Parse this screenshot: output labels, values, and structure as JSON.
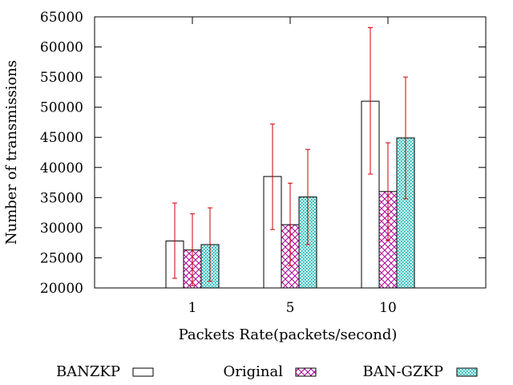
{
  "chart_data": {
    "type": "bar",
    "title": "",
    "xlabel": "Packets Rate(packets/second)",
    "ylabel": "Number of transmissions",
    "categories": [
      "1",
      "5",
      "10"
    ],
    "ylim": [
      20000,
      65000
    ],
    "yticks": [
      20000,
      25000,
      30000,
      35000,
      40000,
      45000,
      50000,
      55000,
      60000,
      65000
    ],
    "ytick_labels": [
      "20000",
      "25000",
      "30000",
      "35000",
      "40000",
      "45000",
      "50000",
      "55000",
      "60000",
      "65000"
    ],
    "error_bars": true,
    "error_color": "#cc0000",
    "legend_position": "bottom",
    "series": [
      {
        "name": "BANZKP",
        "pattern": "empty",
        "color": "#000000",
        "values": [
          27800,
          38500,
          51000
        ],
        "err_low": [
          21600,
          29700,
          38900
        ],
        "err_high": [
          34100,
          47200,
          63200
        ]
      },
      {
        "name": "Original",
        "pattern": "crosshatch",
        "color": "#b0009a",
        "values": [
          26300,
          30500,
          36000
        ],
        "err_low": [
          20400,
          23700,
          27900
        ],
        "err_high": [
          32300,
          37400,
          44100
        ]
      },
      {
        "name": "BAN-GZKP",
        "pattern": "dots",
        "color": "#00aaaa",
        "values": [
          27200,
          35100,
          44900
        ],
        "err_low": [
          21100,
          27200,
          34800
        ],
        "err_high": [
          33300,
          43000,
          55000
        ]
      }
    ]
  }
}
